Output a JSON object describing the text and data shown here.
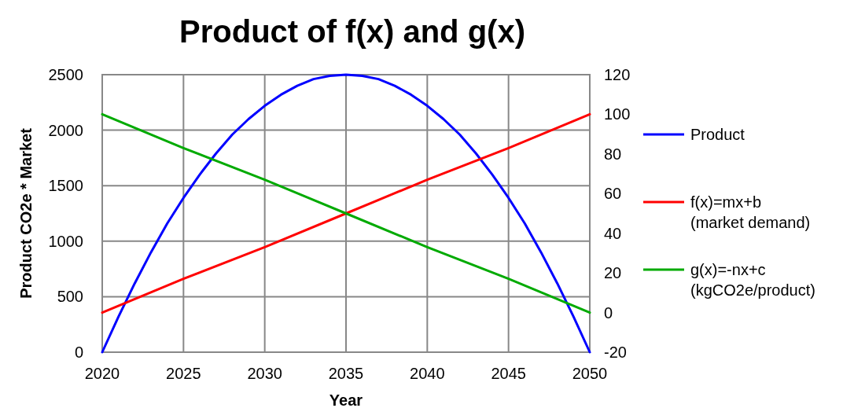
{
  "chart_data": {
    "type": "line",
    "title": "Product of f(x) and g(x)",
    "xlabel": "Year",
    "ylabel": "Product CO2e * Market",
    "xlim": [
      2020,
      2050
    ],
    "xticks": [
      2020,
      2025,
      2030,
      2035,
      2040,
      2045,
      2050
    ],
    "ylim": [
      0,
      2500
    ],
    "yticks": [
      0,
      500,
      1000,
      1500,
      2000,
      2500
    ],
    "y2lim": [
      -20,
      120
    ],
    "y2ticks": [
      -20,
      0,
      20,
      40,
      60,
      80,
      100,
      120
    ],
    "grid": true,
    "legend": "right",
    "line_style": "solid",
    "series": [
      {
        "name": "Product",
        "color": "#0000ff",
        "x": [
          2020,
          2021,
          2022,
          2023,
          2024,
          2025,
          2026,
          2027,
          2028,
          2029,
          2030,
          2031,
          2032,
          2033,
          2034,
          2035,
          2036,
          2037,
          2038,
          2039,
          2040,
          2041,
          2042,
          2043,
          2044,
          2045,
          2046,
          2047,
          2048,
          2049,
          2050
        ],
        "values": [
          0,
          320,
          620,
          900,
          1160,
          1390,
          1600,
          1790,
          1960,
          2100,
          2220,
          2320,
          2400,
          2460,
          2490,
          2500,
          2490,
          2460,
          2400,
          2320,
          2220,
          2100,
          1960,
          1790,
          1600,
          1390,
          1160,
          900,
          620,
          320,
          0
        ]
      },
      {
        "name": "f(x)=mx+b (market demand)",
        "color": "#ff0000",
        "axis": "y2",
        "x": [
          2020,
          2025,
          2030,
          2035,
          2040,
          2045,
          2050
        ],
        "values": [
          0,
          17,
          33,
          50,
          67,
          83,
          100
        ]
      },
      {
        "name": "g(x)=-nx+c (kgCO2e/product)",
        "color": "#00aa00",
        "axis": "y2",
        "x": [
          2020,
          2025,
          2030,
          2035,
          2040,
          2045,
          2050
        ],
        "values": [
          100,
          83,
          67,
          50,
          33,
          17,
          0
        ]
      }
    ]
  }
}
